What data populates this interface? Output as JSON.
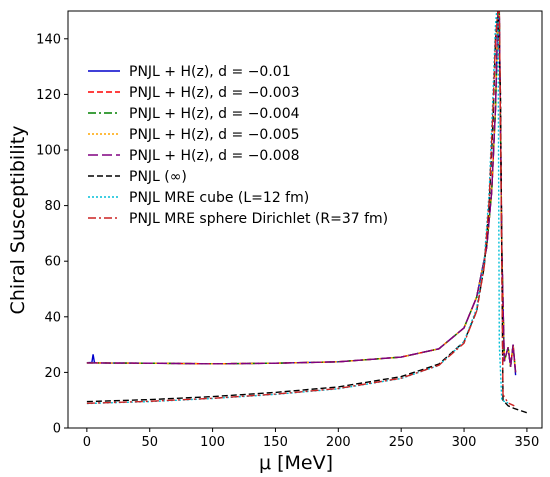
{
  "chart_data": {
    "type": "line",
    "title": "",
    "xlabel": "μ [MeV]",
    "ylabel": "Chiral Susceptibility",
    "xlim": [
      -15,
      362
    ],
    "ylim": [
      0,
      150
    ],
    "x_ticks": [
      0,
      50,
      100,
      150,
      200,
      250,
      300,
      350
    ],
    "y_ticks": [
      0,
      20,
      40,
      60,
      80,
      100,
      120,
      140
    ],
    "grid": false,
    "legend_position": "upper-left",
    "series": [
      {
        "name": "PNJL + H(z), d = −0.01",
        "color": "#0000cc",
        "style": "solid",
        "x": [
          0,
          4,
          5,
          6,
          8,
          50,
          100,
          150,
          200,
          250,
          280,
          300,
          310,
          318,
          322,
          325,
          327,
          328,
          330,
          332,
          335,
          337,
          339,
          341
        ],
        "y": [
          23.5,
          23.6,
          26.5,
          23.6,
          23.4,
          23.3,
          23.1,
          23.3,
          23.8,
          25.5,
          28.5,
          36,
          47,
          65,
          85,
          115,
          150,
          150,
          65,
          24,
          29,
          22,
          30,
          19
        ]
      },
      {
        "name": "PNJL + H(z), d = −0.003",
        "color": "#ff0000",
        "style": "dashed",
        "x": [
          0,
          50,
          100,
          150,
          200,
          250,
          280,
          300,
          310,
          318,
          322,
          325,
          327,
          328,
          330,
          332,
          335,
          337,
          339,
          341
        ],
        "y": [
          23.4,
          23.3,
          23.1,
          23.3,
          23.8,
          25.5,
          28.5,
          36,
          47,
          65,
          85,
          115,
          150,
          150,
          65,
          24,
          29,
          22,
          30,
          20
        ]
      },
      {
        "name": "PNJL + H(z), d = −0.004",
        "color": "#008000",
        "style": "dashdot",
        "x": [
          0,
          50,
          100,
          150,
          200,
          250,
          280,
          300,
          310,
          318,
          322,
          325,
          327,
          328,
          330,
          332,
          335,
          337,
          339,
          341
        ],
        "y": [
          23.4,
          23.3,
          23.1,
          23.3,
          23.8,
          25.5,
          28.5,
          36,
          47,
          65,
          85,
          115,
          150,
          150,
          65,
          24,
          29,
          22,
          30,
          20
        ]
      },
      {
        "name": "PNJL + H(z), d = −0.005",
        "color": "#ffa500",
        "style": "dotted",
        "x": [
          0,
          50,
          100,
          150,
          200,
          250,
          280,
          300,
          310,
          318,
          322,
          325,
          327,
          328,
          330,
          332,
          335,
          337,
          339,
          341
        ],
        "y": [
          23.4,
          23.3,
          23.1,
          23.3,
          23.8,
          25.5,
          28.5,
          36,
          47,
          65,
          85,
          115,
          150,
          150,
          65,
          24,
          29,
          22,
          30,
          20
        ]
      },
      {
        "name": "PNJL + H(z), d = −0.008",
        "color": "#800080",
        "style": "longdash",
        "x": [
          0,
          50,
          100,
          150,
          200,
          250,
          280,
          300,
          310,
          318,
          322,
          325,
          327,
          328,
          330,
          332,
          335,
          337,
          339,
          341
        ],
        "y": [
          23.4,
          23.3,
          23.1,
          23.3,
          23.8,
          25.5,
          28.5,
          36,
          47,
          65,
          85,
          115,
          150,
          150,
          65,
          24,
          29,
          22,
          30,
          20
        ]
      },
      {
        "name": "PNJL (∞)",
        "color": "#000000",
        "style": "dashed",
        "x": [
          0,
          50,
          100,
          150,
          200,
          250,
          280,
          300,
          310,
          316,
          320,
          323,
          325,
          327,
          329,
          331,
          335,
          340,
          350
        ],
        "y": [
          9.5,
          10.2,
          11.3,
          12.8,
          14.8,
          18.5,
          23,
          31,
          42,
          58,
          80,
          110,
          140,
          150,
          120,
          10,
          8,
          7,
          5.5
        ]
      },
      {
        "name": "PNJL MRE cube (L=12 fm)",
        "color": "#00bfd8",
        "style": "dotted",
        "x": [
          0,
          50,
          100,
          150,
          200,
          250,
          280,
          300,
          310,
          316,
          320,
          323,
          325,
          326,
          327,
          328,
          330,
          335
        ],
        "y": [
          8.8,
          9.5,
          10.6,
          12.1,
          14.1,
          17.8,
          22.5,
          31,
          43,
          60,
          85,
          120,
          145,
          150,
          150,
          30,
          10,
          9
        ]
      },
      {
        "name": "PNJL MRE sphere Dirichlet (R=37 fm)",
        "color": "#cc2222",
        "style": "dashdot",
        "x": [
          0,
          50,
          100,
          150,
          200,
          250,
          280,
          300,
          310,
          316,
          320,
          323,
          325,
          327,
          328,
          329,
          331,
          335,
          340
        ],
        "y": [
          8.9,
          9.6,
          10.7,
          12.2,
          14.2,
          17.9,
          22.6,
          30.5,
          42,
          58,
          82,
          115,
          140,
          150,
          150,
          110,
          12,
          9,
          8
        ]
      }
    ]
  }
}
